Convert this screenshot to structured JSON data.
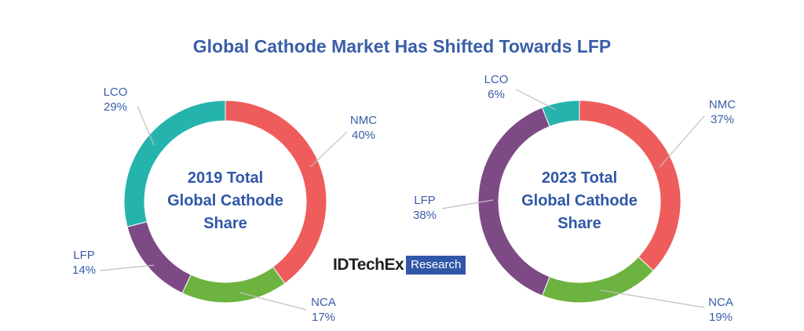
{
  "title": "Global Cathode Market Has Shifted Towards LFP",
  "logo": {
    "brand": "IDTechEx",
    "tag": "Research"
  },
  "colors": {
    "title": "#3a5ea8",
    "label": "#3a5ea8",
    "center_text": "#2f57a6",
    "NMC": "#ee5c5c",
    "NCA": "#6cb33f",
    "LFP": "#7e4a86",
    "LCO": "#25b4ad"
  },
  "chart_data": [
    {
      "type": "pie",
      "center_lines": [
        "2019 Total",
        "Global Cathode",
        "Share"
      ],
      "slices": [
        {
          "label": "NMC",
          "value": 40,
          "display": "40%"
        },
        {
          "label": "NCA",
          "value": 17,
          "display": "17%"
        },
        {
          "label": "LFP",
          "value": 14,
          "display": "14%"
        },
        {
          "label": "LCO",
          "value": 29,
          "display": "29%"
        }
      ]
    },
    {
      "type": "pie",
      "center_lines": [
        "2023 Total",
        "Global Cathode",
        "Share"
      ],
      "slices": [
        {
          "label": "NMC",
          "value": 37,
          "display": "37%"
        },
        {
          "label": "NCA",
          "value": 19,
          "display": "19%"
        },
        {
          "label": "LFP",
          "value": 38,
          "display": "38%"
        },
        {
          "label": "LCO",
          "value": 6,
          "display": "6%"
        }
      ]
    }
  ]
}
